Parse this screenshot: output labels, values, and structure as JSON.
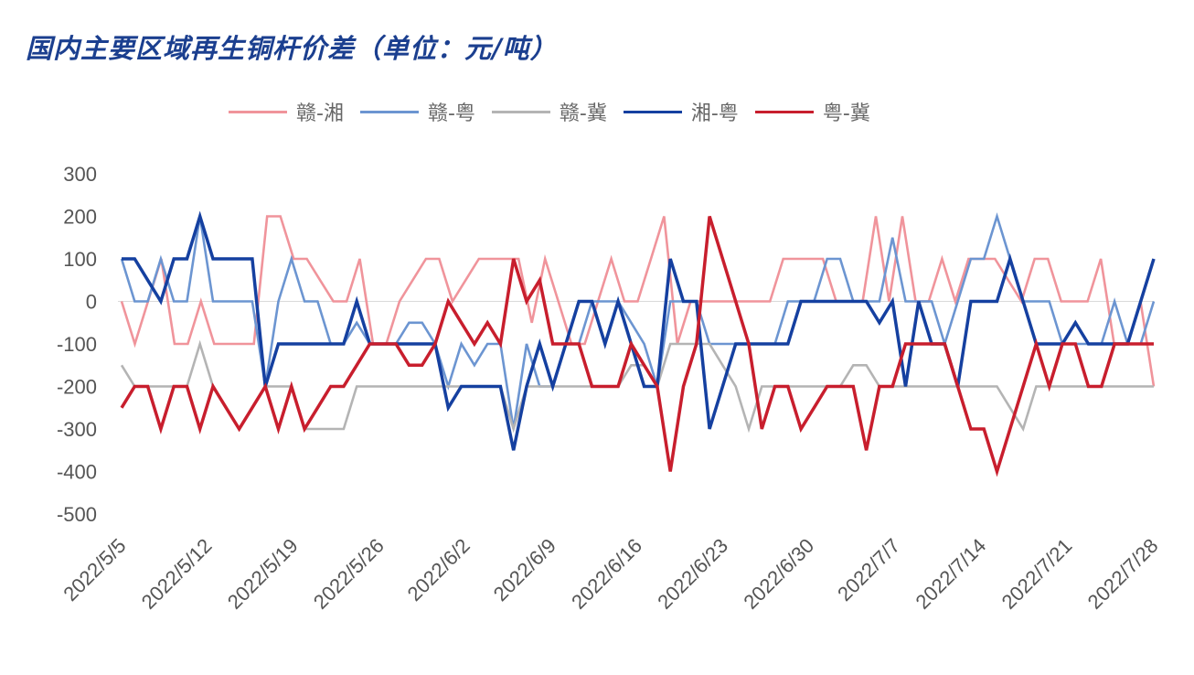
{
  "title": "国内主要区域再生铜杆价差（单位：元/吨）",
  "chart_data": {
    "type": "line",
    "title": "国内主要区域再生铜杆价差（单位：元/吨）",
    "ylim": [
      -500,
      300
    ],
    "yticks": [
      300,
      200,
      100,
      0,
      -100,
      -200,
      -300,
      -400,
      -500
    ],
    "x_labels": [
      "2022/5/5",
      "2022/5/12",
      "2022/5/19",
      "2022/5/26",
      "2022/6/2",
      "2022/6/9",
      "2022/6/16",
      "2022/6/23",
      "2022/6/30",
      "2022/7/7",
      "2022/7/14",
      "2022/7/21",
      "2022/7/28"
    ],
    "legend_position": "top",
    "grid": false,
    "series": [
      {
        "name": "赣-湘",
        "color": "#f0949b",
        "values": [
          0,
          -100,
          0,
          100,
          -100,
          -100,
          0,
          -100,
          -100,
          -100,
          -100,
          200,
          200,
          100,
          100,
          50,
          0,
          0,
          100,
          -100,
          -100,
          0,
          50,
          100,
          100,
          0,
          50,
          100,
          100,
          100,
          100,
          -50,
          100,
          0,
          -100,
          -100,
          0,
          100,
          0,
          0,
          100,
          200,
          -100,
          0,
          0,
          0,
          0,
          0,
          0,
          0,
          100,
          100,
          100,
          100,
          0,
          0,
          0,
          200,
          0,
          200,
          0,
          0,
          100,
          0,
          100,
          100,
          100,
          50,
          0,
          100,
          100,
          0,
          0,
          0,
          100,
          -100,
          -100,
          0,
          -200
        ]
      },
      {
        "name": "赣-粤",
        "color": "#6c95d1",
        "values": [
          100,
          0,
          0,
          100,
          0,
          0,
          200,
          0,
          0,
          0,
          0,
          -200,
          0,
          100,
          0,
          0,
          -100,
          -100,
          -50,
          -100,
          -100,
          -100,
          -50,
          -50,
          -100,
          -200,
          -100,
          -150,
          -100,
          -100,
          -300,
          -100,
          -200,
          -200,
          -100,
          -100,
          0,
          0,
          0,
          -50,
          -100,
          -200,
          0,
          0,
          0,
          -100,
          -100,
          -100,
          -100,
          -100,
          -100,
          0,
          0,
          0,
          100,
          100,
          0,
          0,
          0,
          150,
          0,
          0,
          0,
          -100,
          0,
          100,
          100,
          200,
          100,
          0,
          0,
          0,
          -100,
          -100,
          -100,
          -100,
          0,
          -100,
          -100,
          0
        ]
      },
      {
        "name": "赣-冀",
        "color": "#b4b4b4",
        "values": [
          -150,
          -200,
          -200,
          -200,
          -200,
          -200,
          -100,
          -200,
          -250,
          -300,
          -250,
          -200,
          -200,
          -200,
          -300,
          -300,
          -300,
          -300,
          -200,
          -200,
          -200,
          -200,
          -200,
          -200,
          -200,
          -200,
          -200,
          -200,
          -200,
          -200,
          -300,
          -200,
          -200,
          -200,
          -200,
          -200,
          -200,
          -200,
          -200,
          -150,
          -150,
          -200,
          -100,
          -100,
          -100,
          -100,
          -150,
          -200,
          -300,
          -200,
          -200,
          -200,
          -200,
          -200,
          -200,
          -200,
          -150,
          -150,
          -200,
          -200,
          -200,
          -200,
          -200,
          -200,
          -200,
          -200,
          -200,
          -200,
          -250,
          -300,
          -200,
          -200,
          -200,
          -200,
          -200,
          -200,
          -200,
          -200,
          -200,
          -200
        ]
      },
      {
        "name": "湘-粤",
        "color": "#1540a0",
        "values": [
          100,
          100,
          50,
          0,
          100,
          100,
          200,
          100,
          100,
          100,
          100,
          -200,
          -100,
          -100,
          -100,
          -100,
          -100,
          -100,
          0,
          -100,
          -100,
          -100,
          -100,
          -100,
          -100,
          -250,
          -200,
          -200,
          -200,
          -200,
          -350,
          -200,
          -100,
          -200,
          -100,
          0,
          0,
          -100,
          0,
          -100,
          -200,
          -200,
          100,
          0,
          0,
          -300,
          -200,
          -100,
          -100,
          -100,
          -100,
          -100,
          0,
          0,
          0,
          0,
          0,
          0,
          -50,
          0,
          -200,
          0,
          -100,
          -100,
          -200,
          0,
          0,
          0,
          100,
          0,
          -100,
          -100,
          -100,
          -50,
          -100,
          -100,
          -100,
          -100,
          0,
          100
        ]
      },
      {
        "name": "粤-冀",
        "color": "#c81e2d",
        "values": [
          -250,
          -200,
          -200,
          -300,
          -200,
          -200,
          -300,
          -200,
          -250,
          -300,
          -250,
          -200,
          -300,
          -200,
          -300,
          -250,
          -200,
          -200,
          -150,
          -100,
          -100,
          -100,
          -150,
          -150,
          -100,
          0,
          -50,
          -100,
          -50,
          -100,
          100,
          0,
          50,
          -100,
          -100,
          -100,
          -200,
          -200,
          -200,
          -100,
          -150,
          -200,
          -400,
          -200,
          -100,
          200,
          100,
          0,
          -100,
          -300,
          -200,
          -200,
          -300,
          -250,
          -200,
          -200,
          -200,
          -350,
          -200,
          -200,
          -100,
          -100,
          -100,
          -100,
          -200,
          -300,
          -300,
          -400,
          -300,
          -200,
          -100,
          -200,
          -100,
          -100,
          -200,
          -200,
          -100,
          -100,
          -100,
          -100
        ]
      }
    ]
  }
}
